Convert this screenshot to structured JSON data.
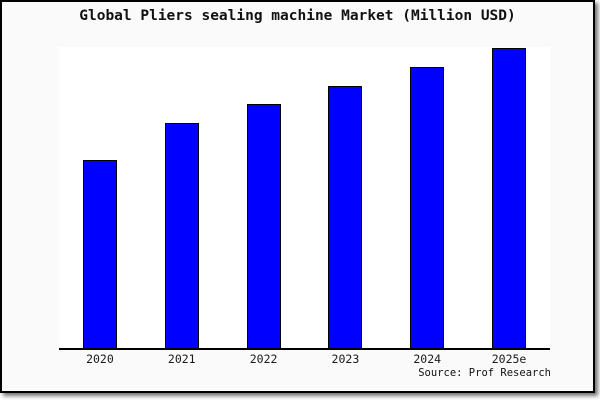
{
  "chart_data": {
    "type": "bar",
    "title": "Global Pliers sealing machine Market (Million USD)",
    "categories": [
      "2020",
      "2021",
      "2022",
      "2023",
      "2024",
      "2025e"
    ],
    "values": [
      188,
      225,
      244,
      262,
      281,
      300
    ],
    "xlabel": "",
    "ylabel": "",
    "ylim": [
      0,
      301
    ],
    "grid": false,
    "legend": false,
    "bar_color": "#0000ff",
    "bar_border_color": "#000000",
    "source": "Source: Prof Research"
  },
  "colors": {
    "frame_background": "#fafafa",
    "plot_background": "#ffffff",
    "axis": "#000000",
    "text": "#111111"
  }
}
